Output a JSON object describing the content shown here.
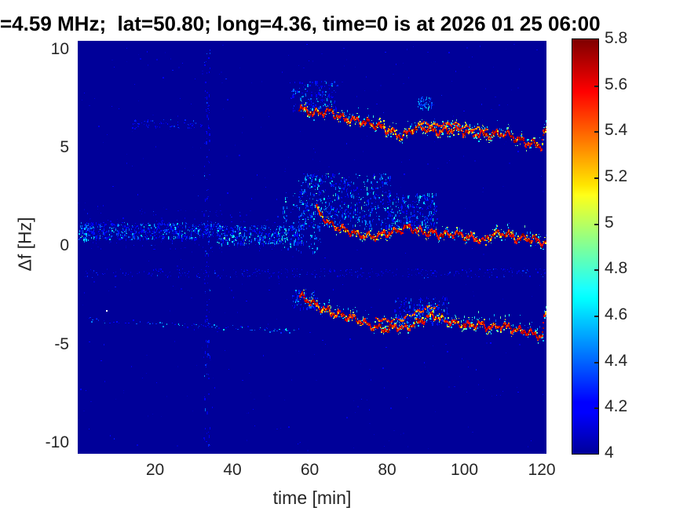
{
  "figure": {
    "title": "=4.59 MHz;  lat=50.80; long=4.36, time=0 is at 2026 01 25 06:00"
  },
  "colors": {
    "plot_background": "#000099",
    "label_color": "#262626",
    "title_color": "#000000"
  },
  "chart_data": {
    "type": "heatmap",
    "title": "=4.59 MHz;  lat=50.80; long=4.36, time=0 is at 2026 01 25 06:00",
    "xlabel": "time [min]",
    "ylabel": "Δf [Hz]",
    "xlim": [
      0,
      121.2
    ],
    "ylim": [
      -10.56,
      10.44
    ],
    "xticks": [
      20,
      40,
      60,
      80,
      100,
      120
    ],
    "yticks": [
      10,
      5,
      0,
      -5,
      -10
    ],
    "grid": false,
    "colormap": "jet",
    "background_value": 4.0,
    "colorbar": {
      "min": 4.0,
      "max": 5.8,
      "ticks": [
        5.8,
        5.6,
        5.4,
        5.2,
        5.0,
        4.8,
        4.6,
        4.4,
        4.2,
        4.0
      ],
      "tick_labels": [
        "5.8",
        "5.6",
        "5.4",
        "5.2",
        "5",
        "4.8",
        "4.6",
        "4.4",
        "4.2",
        "4"
      ]
    },
    "traces": [
      {
        "name": "upper-doppler-trace",
        "strength": "strong",
        "points": [
          [
            57.4,
            7.0
          ],
          [
            61.1,
            6.73
          ],
          [
            65.1,
            6.85
          ],
          [
            69.2,
            6.45
          ],
          [
            73.3,
            6.33
          ],
          [
            77.3,
            6.13
          ],
          [
            81.4,
            5.81
          ],
          [
            84.0,
            5.53
          ],
          [
            86.5,
            5.93
          ],
          [
            89.5,
            6.01
          ],
          [
            93.6,
            5.81
          ],
          [
            97.6,
            5.93
          ],
          [
            101.7,
            5.73
          ],
          [
            105.8,
            5.65
          ],
          [
            109.8,
            5.73
          ],
          [
            112.9,
            5.53
          ],
          [
            115.9,
            5.25
          ],
          [
            119.0,
            5.13
          ],
          [
            120.1,
            5.1
          ],
          [
            120.5,
            5.75
          ],
          [
            121.2,
            5.8
          ]
        ]
      },
      {
        "name": "upper-trace-echo",
        "strength": "medium",
        "points": [
          [
            88,
            6.3
          ],
          [
            93,
            6.15
          ],
          [
            97,
            6.25
          ],
          [
            102,
            6.0
          ],
          [
            106,
            5.92
          ]
        ]
      },
      {
        "name": "middle-doppler-trace",
        "strength": "strong",
        "points": [
          [
            61.8,
            1.9
          ],
          [
            62.7,
            1.66
          ],
          [
            65.1,
            1.14
          ],
          [
            67.2,
            0.94
          ],
          [
            70.2,
            0.74
          ],
          [
            73.3,
            0.54
          ],
          [
            76.3,
            0.46
          ],
          [
            79.3,
            0.62
          ],
          [
            82.4,
            0.74
          ],
          [
            85.4,
            0.94
          ],
          [
            88.5,
            0.74
          ],
          [
            91.5,
            0.66
          ],
          [
            94.6,
            0.54
          ],
          [
            97.6,
            0.62
          ],
          [
            100.7,
            0.46
          ],
          [
            103.7,
            0.34
          ],
          [
            105.2,
            0.22
          ],
          [
            106.8,
            0.54
          ],
          [
            109.8,
            0.66
          ],
          [
            111.9,
            0.54
          ],
          [
            113.9,
            0.34
          ],
          [
            115.9,
            0.42
          ],
          [
            118.0,
            0.3
          ],
          [
            120.0,
            0.22
          ],
          [
            121.2,
            0.14
          ]
        ]
      },
      {
        "name": "lower-doppler-trace",
        "strength": "strong",
        "points": [
          [
            57.6,
            -2.53
          ],
          [
            60.0,
            -2.85
          ],
          [
            62.1,
            -3.05
          ],
          [
            65.1,
            -3.37
          ],
          [
            68.2,
            -3.53
          ],
          [
            71.2,
            -3.65
          ],
          [
            74.3,
            -3.93
          ],
          [
            77.3,
            -4.17
          ],
          [
            80.4,
            -4.25
          ],
          [
            82.4,
            -4.05
          ],
          [
            84.4,
            -4.25
          ],
          [
            87.5,
            -3.93
          ],
          [
            90.5,
            -3.65
          ],
          [
            92.6,
            -3.53
          ],
          [
            94.6,
            -3.77
          ],
          [
            97.6,
            -3.93
          ],
          [
            100.7,
            -4.05
          ],
          [
            103.7,
            -3.97
          ],
          [
            106.8,
            -4.17
          ],
          [
            109.8,
            -4.05
          ],
          [
            112.9,
            -4.25
          ],
          [
            115.9,
            -4.33
          ],
          [
            119.0,
            -4.57
          ],
          [
            120.2,
            -4.6
          ],
          [
            120.6,
            -3.7
          ],
          [
            121.2,
            -3.65
          ]
        ]
      },
      {
        "name": "lower-trace-echo",
        "strength": "medium",
        "points": [
          [
            77,
            -3.7
          ],
          [
            80,
            -3.78
          ],
          [
            84,
            -3.7
          ],
          [
            87,
            -3.4
          ],
          [
            90,
            -3.15
          ],
          [
            93,
            -3.05
          ]
        ]
      },
      {
        "name": "lower-faint-band",
        "strength": "faint",
        "points": [
          [
            2,
            -3.75
          ],
          [
            20,
            -3.93
          ],
          [
            40,
            -4.15
          ],
          [
            58,
            -4.3
          ]
        ]
      }
    ],
    "noise_bands": [
      {
        "name": "mid-band-left",
        "t": [
          0.5,
          37
        ],
        "df": [
          0.35,
          1.2
        ],
        "n": 520,
        "v": [
          4.12,
          4.85
        ],
        "dash": true
      },
      {
        "name": "mid-band-left-2",
        "t": [
          36,
          58
        ],
        "df": [
          0.1,
          1.05
        ],
        "n": 360,
        "v": [
          4.15,
          5.05
        ],
        "dash": true
      },
      {
        "name": "mid-band-halo",
        "t": [
          0.5,
          56
        ],
        "df": [
          -0.3,
          1.9
        ],
        "n": 200,
        "v": [
          4.06,
          4.35
        ],
        "dash": false
      },
      {
        "name": "mid-band-edge-burst",
        "t": [
          0.3,
          3
        ],
        "df": [
          0.3,
          1.1
        ],
        "n": 28,
        "v": [
          4.4,
          4.95
        ],
        "dash": true
      },
      {
        "name": "transition-dashes",
        "t": [
          53,
          63
        ],
        "df": [
          -0.3,
          2.7
        ],
        "n": 130,
        "v": [
          4.25,
          5.0
        ],
        "dash": true
      },
      {
        "name": "cloud-above-mid-1",
        "t": [
          57,
          81
        ],
        "df": [
          1.0,
          3.7
        ],
        "n": 520,
        "v": [
          4.15,
          4.95
        ],
        "dash": true
      },
      {
        "name": "cloud-above-mid-2",
        "t": [
          80,
          93
        ],
        "df": [
          0.9,
          2.7
        ],
        "n": 260,
        "v": [
          4.15,
          4.85
        ],
        "dash": true
      },
      {
        "name": "cloud-above-top",
        "t": [
          55,
          67
        ],
        "df": [
          6.9,
          8.4
        ],
        "n": 150,
        "v": [
          4.12,
          4.75
        ],
        "dash": true
      },
      {
        "name": "cluster-top-mid",
        "t": [
          88,
          91.5
        ],
        "df": [
          7.0,
          7.6
        ],
        "n": 55,
        "v": [
          4.3,
          4.9
        ],
        "dash": true
      },
      {
        "name": "cloud-above-bottom",
        "t": [
          82,
          96
        ],
        "df": [
          -4.0,
          -2.6
        ],
        "n": 190,
        "v": [
          4.12,
          4.7
        ],
        "dash": true
      },
      {
        "name": "cluster-bottom-start",
        "t": [
          55.5,
          62
        ],
        "df": [
          -3.2,
          -2.2
        ],
        "n": 70,
        "v": [
          4.15,
          4.7
        ],
        "dash": true
      },
      {
        "name": "minus-1p4-hz-band",
        "t": [
          0.5,
          121
        ],
        "df": [
          -1.6,
          -1.15
        ],
        "n": 330,
        "v": [
          4.06,
          4.4
        ],
        "dash": false
      },
      {
        "name": "plus-6-hz-band-left",
        "t": [
          14,
          33
        ],
        "df": [
          5.95,
          6.45
        ],
        "n": 70,
        "v": [
          4.1,
          4.55
        ],
        "dash": false
      },
      {
        "name": "vertical-streak-t33",
        "t": [
          32.6,
          34.2
        ],
        "df": [
          -10.4,
          10.2
        ],
        "n": 130,
        "v": [
          4.1,
          4.5
        ],
        "dash": true
      },
      {
        "name": "background-dust",
        "t": [
          0.2,
          121
        ],
        "df": [
          -10.45,
          10.3
        ],
        "n": 420,
        "v": [
          4.04,
          4.3
        ],
        "dash": false
      }
    ],
    "bright_dots": [
      {
        "t": 7.4,
        "df": -3.29,
        "color": "#ffffff"
      }
    ]
  }
}
